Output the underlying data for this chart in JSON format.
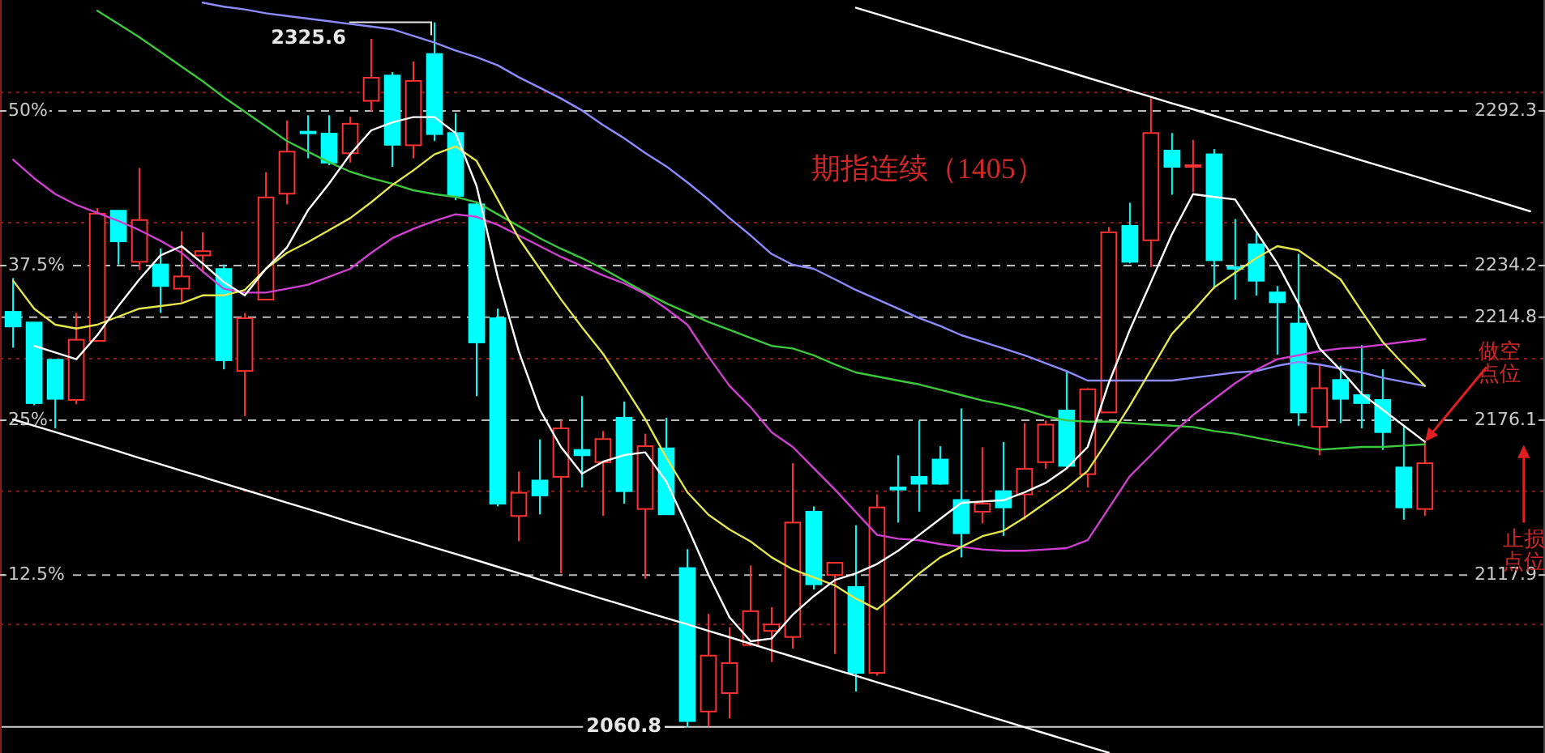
{
  "chart_data": {
    "type": "candlestick",
    "title": "期指连续（1405）",
    "categories": [
      null,
      null,
      null,
      null,
      null,
      null,
      null,
      null,
      null,
      null,
      null,
      null,
      null,
      null,
      null,
      null,
      null,
      null,
      null,
      null,
      null,
      null,
      null,
      null,
      null,
      null,
      null,
      null,
      null,
      null,
      null,
      null,
      null,
      null,
      null,
      null,
      null,
      null,
      null,
      null,
      null,
      null,
      null,
      null,
      null,
      null,
      null,
      null,
      null,
      null,
      null,
      null,
      null,
      null,
      null,
      null,
      null,
      null,
      null,
      null,
      null,
      null,
      null,
      null,
      null,
      null,
      null,
      null,
      null,
      null,
      null,
      null,
      null
    ],
    "ohlc": [
      [
        2216.8,
        2229.5,
        2203.3,
        2211.3
      ],
      [
        2212.8,
        2212.8,
        2181.7,
        2182.5
      ],
      [
        2198.8,
        2198.8,
        2173.0,
        2184.1
      ],
      [
        2183.7,
        2216.4,
        2182.1,
        2206.3
      ],
      [
        2205.9,
        2255.8,
        2205.9,
        2253.7
      ],
      [
        2254.8,
        2254.8,
        2234.6,
        2243.3
      ],
      [
        2235.6,
        2270.9,
        2232.5,
        2251.3
      ],
      [
        2234.6,
        2240.6,
        2216.4,
        2226.5
      ],
      [
        2225.5,
        2247.1,
        2220.4,
        2230.1
      ],
      [
        2238.0,
        2246.7,
        2231.5,
        2239.6
      ],
      [
        2232.9,
        2234.6,
        2195.2,
        2198.6
      ],
      [
        2194.6,
        2216.4,
        2177.6,
        2214.4
      ],
      [
        2221.4,
        2269.3,
        2221.4,
        2259.8
      ],
      [
        2261.2,
        2288.7,
        2257.2,
        2277.0
      ],
      [
        2284.5,
        2290.7,
        2274.5,
        2284.0
      ],
      [
        2283.8,
        2290.7,
        2271.9,
        2272.9
      ],
      [
        2276.4,
        2290.1,
        2272.9,
        2287.5
      ],
      [
        2296.1,
        2319.4,
        2292.1,
        2304.8
      ],
      [
        2305.6,
        2306.9,
        2271.3,
        2279.6
      ],
      [
        2279.4,
        2310.9,
        2274.5,
        2303.6
      ],
      [
        2313.7,
        2325.6,
        2281.0,
        2283.6
      ],
      [
        2284.0,
        2291.5,
        2258.8,
        2260.4
      ],
      [
        2257.2,
        2257.8,
        2185.1,
        2205.3
      ],
      [
        2214.4,
        2218.0,
        2143.7,
        2144.7
      ],
      [
        2140.1,
        2156.8,
        2130.6,
        2148.8
      ],
      [
        2153.4,
        2168.9,
        2140.7,
        2147.8
      ],
      [
        2154.8,
        2176.0,
        2118.5,
        2173.0
      ],
      [
        2164.9,
        2185.1,
        2150.8,
        2162.9
      ],
      [
        2160.3,
        2172.0,
        2140.1,
        2169.0
      ],
      [
        2177.0,
        2183.1,
        2144.7,
        2149.4
      ],
      [
        2142.7,
        2171.0,
        2116.5,
        2166.3
      ],
      [
        2165.5,
        2177.0,
        2140.7,
        2140.7
      ],
      [
        2120.5,
        2127.6,
        2060.8,
        2063.0
      ],
      [
        2066.6,
        2103.3,
        2060.9,
        2087.6
      ],
      [
        2073.5,
        2098.3,
        2064.0,
        2084.8
      ],
      [
        2091.6,
        2121.5,
        2091.2,
        2104.3
      ],
      [
        2096.9,
        2105.8,
        2085.2,
        2099.3
      ],
      [
        2094.6,
        2159.9,
        2090.2,
        2137.6
      ],
      [
        2141.7,
        2143.7,
        2112.4,
        2114.4
      ],
      [
        2117.9,
        2122.5,
        2088.2,
        2122.5
      ],
      [
        2113.4,
        2136.6,
        2074.1,
        2081.1
      ],
      [
        2081.1,
        2148.2,
        2080.1,
        2143.3
      ],
      [
        2150.8,
        2162.9,
        2137.6,
        2150.0
      ],
      [
        2154.8,
        2176.0,
        2141.7,
        2152.2
      ],
      [
        2161.3,
        2166.3,
        2151.8,
        2152.2
      ],
      [
        2146.1,
        2180.5,
        2124.5,
        2133.6
      ],
      [
        2141.7,
        2165.9,
        2137.3,
        2144.7
      ],
      [
        2149.4,
        2167.9,
        2132.6,
        2143.3
      ],
      [
        2148.2,
        2175.0,
        2138.7,
        2157.8
      ],
      [
        2160.3,
        2176.0,
        2157.8,
        2174.4
      ],
      [
        2179.7,
        2194.2,
        2157.8,
        2158.9
      ],
      [
        2155.8,
        2188.1,
        2150.8,
        2187.7
      ],
      [
        2179.0,
        2248.7,
        2179.0,
        2246.7
      ],
      [
        2249.1,
        2257.8,
        2235.0,
        2235.6
      ],
      [
        2243.7,
        2297.2,
        2233.6,
        2284.0
      ],
      [
        2277.4,
        2284.0,
        2260.8,
        2271.3
      ],
      [
        2271.5,
        2281.4,
        2261.8,
        2271.9
      ],
      [
        2276.0,
        2278.0,
        2225.5,
        2236.2
      ],
      [
        2233.6,
        2251.7,
        2221.4,
        2233.0
      ],
      [
        2242.2,
        2246.3,
        2222.9,
        2228.5
      ],
      [
        2224.1,
        2226.5,
        2200.7,
        2220.4
      ],
      [
        2212.4,
        2238.6,
        2174.0,
        2179.0
      ],
      [
        2173.6,
        2197.2,
        2162.9,
        2188.1
      ],
      [
        2191.2,
        2196.6,
        2175.0,
        2184.1
      ],
      [
        2185.5,
        2204.3,
        2173.0,
        2182.5
      ],
      [
        2183.7,
        2195.2,
        2164.9,
        2171.6
      ],
      [
        2158.3,
        2174.0,
        2138.7,
        2143.3
      ],
      [
        2142.7,
        2168.0,
        2140.1,
        2159.9
      ],
      null,
      null,
      null,
      null,
      null
    ],
    "colors": [
      "#00ffff",
      "#00ffff",
      "#00ffff",
      "#ff3232",
      "#ff3232",
      "#00ffff",
      "#ff3232",
      "#00ffff",
      "#ff3232",
      "#ff3232",
      "#00ffff",
      "#ff3232",
      "#ff3232",
      "#ff3232",
      "#00ffff",
      "#00ffff",
      "#ff3232",
      "#ff3232",
      "#00ffff",
      "#ff3232",
      "#00ffff",
      "#00ffff",
      "#00ffff",
      "#00ffff",
      "#ff3232",
      "#00ffff",
      "#ff3232",
      "#00ffff",
      "#ff3232",
      "#00ffff",
      "#ff3232",
      "#00ffff",
      "#00ffff",
      "#ff3232",
      "#ff3232",
      "#ff3232",
      "#ff3232",
      "#ff3232",
      "#00ffff",
      "#ff3232",
      "#00ffff",
      "#ff3232",
      "#00ffff",
      "#00ffff",
      "#00ffff",
      "#00ffff",
      "#ff3232",
      "#00ffff",
      "#ff3232",
      "#ff3232",
      "#00ffff",
      "#ff3232",
      "#ff3232",
      "#00ffff",
      "#ff3232",
      "#00ffff",
      "#ff3232",
      "#00ffff",
      "#00ffff",
      "#00ffff",
      "#00ffff",
      "#00ffff",
      "#ff3232",
      "#00ffff",
      "#00ffff",
      "#00ffff",
      "#00ffff",
      "#ff3232",
      null,
      null,
      null,
      null,
      null
    ],
    "series": [
      {
        "type": "line",
        "color": "#8c8cff",
        "values": [
          null,
          null,
          null,
          null,
          null,
          null,
          null,
          null,
          null,
          2333,
          2331.5,
          2330.5,
          2329,
          2328,
          2327,
          2326,
          2325,
          2324,
          2323,
          2320.5,
          2318,
          2315,
          2312.5,
          2309.5,
          2305,
          2301,
          2297,
          2292.5,
          2287,
          2282,
          2276.5,
          2271.5,
          2265.5,
          2259,
          2252,
          2245.5,
          2238.5,
          2234.5,
          2233,
          2229,
          2225,
          2221.5,
          2218,
          2214.5,
          2211.5,
          2208,
          2205.5,
          2203,
          2200.5,
          2197.5,
          2194.5,
          2191,
          2191,
          2191,
          2191,
          2191,
          2192,
          2193,
          2194,
          2194.5,
          2196.5,
          2198,
          2197,
          2195.5,
          2194,
          2192,
          2190.5,
          2189,
          null,
          null,
          null,
          null,
          null
        ]
      },
      {
        "type": "line",
        "color": "#3cc83c",
        "values": [
          null,
          null,
          null,
          null,
          2330,
          2325,
          2320,
          2314.5,
          2309,
          2303.5,
          2297.5,
          2292,
          2286.5,
          2281,
          2277,
          2273,
          2269.5,
          2267,
          2265,
          2262.5,
          2261,
          2260,
          2258,
          2253.5,
          2249,
          2244.5,
          2240.5,
          2237,
          2233,
          2228.5,
          2224,
          2220,
          2216.5,
          2213,
          2210,
          2207,
          2204,
          2203,
          2200.5,
          2197,
          2194,
          2192.5,
          2191,
          2189.5,
          2187.5,
          2185.5,
          2183.5,
          2182,
          2180,
          2177.5,
          2176,
          2175.5,
          2175.5,
          2175,
          2174.5,
          2174,
          2173.5,
          2172,
          2171,
          2169.5,
          2168,
          2166.5,
          2165,
          2165.5,
          2166,
          2166,
          2166.5,
          2167,
          null,
          null,
          null,
          null,
          null
        ]
      },
      {
        "type": "line",
        "color": "#d040d0",
        "values": [
          2274,
          2267,
          2261,
          2257,
          2254,
          2251,
          2247.5,
          2243.5,
          2239,
          2232,
          2225.5,
          2224,
          2224,
          2225.5,
          2227,
          2230,
          2233,
          2239,
          2244.5,
          2248,
          2251,
          2253.5,
          2252.5,
          2249.5,
          2245.5,
          2241.5,
          2237.5,
          2234,
          2230.5,
          2227.5,
          2223.5,
          2218,
          2212,
          2200,
          2189,
          2181,
          2171.5,
          2166,
          2158,
          2150,
          2141.5,
          2133,
          2131.5,
          2131,
          2129.5,
          2128.5,
          2127.5,
          2127,
          2127,
          2127.5,
          2128,
          2131,
          2143,
          2155,
          2163,
          2171,
          2178,
          2184,
          2190,
          2195,
          2199,
          2200.5,
          2202,
          2203,
          2203.5,
          2204.5,
          2205.5,
          2206.5,
          null,
          null,
          null,
          null,
          null
        ]
      },
      {
        "type": "line",
        "color": "#e6e64c",
        "values": [
          2228.5,
          2218,
          2212,
          2210.5,
          2212,
          2215,
          2218,
          2219,
          2220,
          2223,
          2223,
          2225,
          2233,
          2239,
          2243,
          2247.5,
          2252,
          2258,
          2264.5,
          2270,
          2276,
          2279,
          2273.5,
          2259,
          2244.5,
          2233,
          2221.5,
          2211,
          2201,
          2189,
          2176.5,
          2162,
          2149,
          2140.5,
          2135,
          2130.5,
          2124.5,
          2120,
          2117,
          2114,
          2109,
          2105,
          2111.5,
          2118.5,
          2124.5,
          2128.5,
          2132.5,
          2134.5,
          2139.5,
          2145,
          2150.5,
          2157,
          2169,
          2181.5,
          2195,
          2208.5,
          2217,
          2226,
          2231.5,
          2237,
          2241.5,
          2240,
          2234.5,
          2229,
          2217,
          2205.5,
          2197,
          2189,
          null,
          null,
          null,
          null,
          null
        ]
      },
      {
        "type": "line",
        "color": "#ffffff",
        "values": [
          null,
          2204,
          2201.5,
          2199,
          2208,
          2219,
          2229,
          2238,
          2241.5,
          2235,
          2228,
          2223,
          2233,
          2241,
          2255,
          2265,
          2276,
          2285,
          2288,
          2290,
          2290,
          2284,
          2264,
          2230,
          2202,
          2180,
          2166,
          2156,
          2160.5,
          2163,
          2164,
          2153,
          2136,
          2118,
          2102,
          2093,
          2094,
          2103,
          2110,
          2116,
          2118.5,
          2122,
          2127,
          2133,
          2139,
          2145,
          2145.5,
          2146,
          2149,
          2152.5,
          2158,
          2166,
          2190,
          2210,
          2228,
          2246,
          2261,
          2260,
          2259,
          2247,
          2235,
          2220,
          2203,
          2195,
          2186,
          2180,
          2174,
          2168,
          null,
          null,
          null,
          null,
          null
        ]
      },
      {
        "type": "line",
        "color": "#ffffff",
        "values": [
          null,
          null,
          null,
          null,
          null,
          null,
          null,
          null,
          null,
          null,
          null,
          null,
          null,
          null,
          null,
          null,
          null,
          null,
          null,
          null,
          null,
          null,
          null,
          null,
          null,
          null,
          null,
          null,
          null,
          null,
          null,
          null,
          null,
          null,
          null,
          null,
          null,
          null,
          null,
          null,
          2331.1,
          2328.7,
          2326.3,
          2323.9,
          2321.5,
          2319.2,
          2316.8,
          2314.4,
          2312.0,
          2309.6,
          2307.2,
          2304.8,
          2302.4,
          2300.0,
          2297.6,
          2295.2,
          2292.9,
          2290.5,
          2288.1,
          2285.7,
          2283.3,
          2280.9,
          2278.5,
          2276.1,
          2273.7,
          2271.4,
          2269.0,
          2266.6,
          2264.2,
          2261.8,
          2259.4,
          2257.0,
          2254.6
        ]
      },
      {
        "type": "line",
        "color": "#ffffff",
        "values": [
          2176.4,
          2174.0,
          2171.6,
          2169.2,
          2166.8,
          2164.4,
          2161.9,
          2159.5,
          2157.1,
          2154.7,
          2152.3,
          2149.9,
          2147.5,
          2145.1,
          2142.7,
          2140.3,
          2137.8,
          2135.4,
          2133.0,
          2130.6,
          2128.2,
          2125.8,
          2123.4,
          2121.0,
          2118.6,
          2116.2,
          2113.7,
          2111.3,
          2108.9,
          2106.5,
          2104.1,
          2101.7,
          2099.3,
          2096.9,
          2094.5,
          2092.1,
          2089.6,
          2087.2,
          2084.8,
          2082.4,
          2080.0,
          2077.6,
          2075.2,
          2072.8,
          2070.4,
          2068.0,
          2065.5,
          2063.1,
          2060.7,
          2058.3,
          2055.9,
          2053.5,
          2051.1,
          null,
          null,
          null,
          null,
          null,
          null,
          null,
          null,
          null,
          null,
          null,
          null,
          null,
          null,
          null,
          null,
          null,
          null,
          null,
          null
        ]
      }
    ],
    "ylim": [
      2051,
      2334
    ],
    "yticks": [
      2292.3,
      2234.2,
      2214.8,
      2176.1,
      2117.9
    ],
    "y2lim": [
      -1.89,
      58.97
    ],
    "y2ticks": [
      {
        "value": 12.5,
        "label": "12.5%"
      },
      {
        "value": 25,
        "label": "25%"
      },
      {
        "value": 37.5,
        "label": "37.5%"
      },
      {
        "value": 50,
        "label": "50%"
      }
    ],
    "tick_labels": "y",
    "grid": "y",
    "ref_lines": [
      {
        "axis": "y",
        "value": 2299.2,
        "color": "#8b1a1a",
        "line_style": "dotted"
      },
      {
        "axis": "y",
        "value": 2250.3,
        "color": "#8b1a1a",
        "line_style": "dotted"
      },
      {
        "axis": "y",
        "value": 2199.2,
        "color": "#8b1a1a",
        "line_style": "dotted"
      },
      {
        "axis": "y",
        "value": 2149.4,
        "color": "#8b1a1a",
        "line_style": "dotted"
      },
      {
        "axis": "y",
        "value": 2099.3,
        "color": "#8b1a1a",
        "line_style": "dotted"
      },
      {
        "axis": "y",
        "value": 2060.8,
        "color": "#d0d0d0",
        "line_style": "solid"
      }
    ],
    "annotations": [
      {
        "text": "2325.6",
        "y": 2325.6
      },
      {
        "text": "2060.8",
        "y": 2060.8
      },
      "做空点位",
      "止损点位"
    ]
  }
}
